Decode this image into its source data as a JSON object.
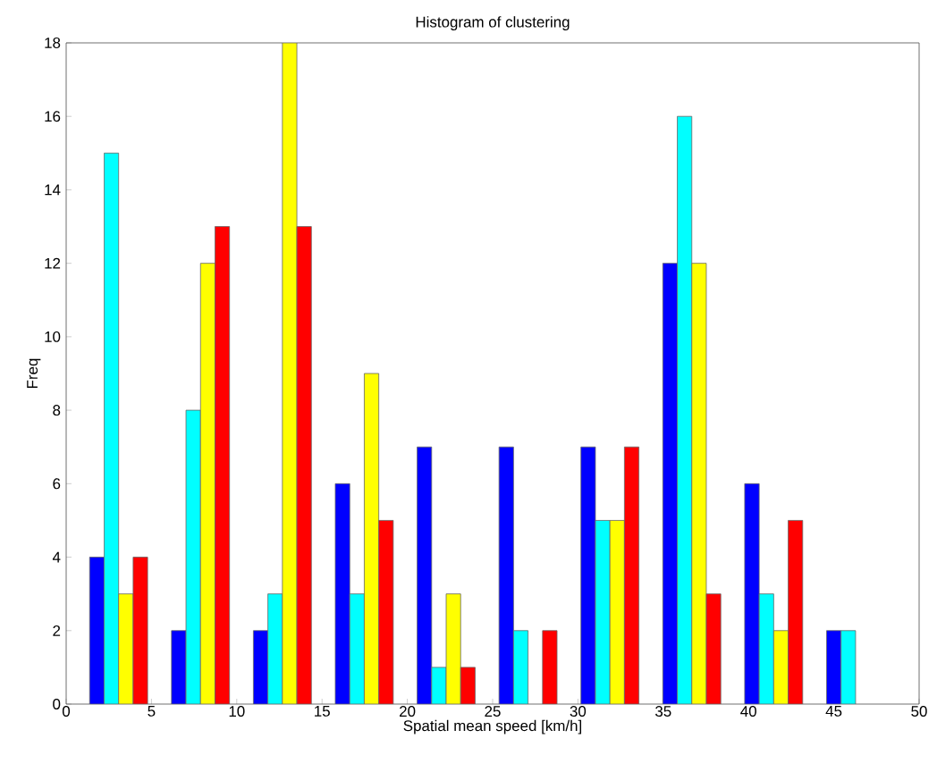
{
  "chart_data": {
    "type": "bar",
    "title": "Histogram of clustering",
    "xlabel": "Spatial mean speed [km/h]",
    "ylabel": "Freq",
    "xlim": [
      0,
      50
    ],
    "xticks": [
      0,
      5,
      10,
      15,
      20,
      25,
      30,
      35,
      40,
      45,
      50
    ],
    "ylim": [
      0,
      18
    ],
    "yticks": [
      0,
      2,
      4,
      6,
      8,
      10,
      12,
      14,
      16,
      18
    ],
    "grid": false,
    "series": [
      {
        "color": "#0000ff",
        "x": [
          1.8,
          6.6,
          11.4,
          16.2,
          21,
          25.8,
          30.6,
          35.4,
          40.2,
          45
        ],
        "values": [
          4,
          2,
          2,
          6,
          7,
          7,
          7,
          12,
          6,
          2
        ]
      },
      {
        "color": "#00ffff",
        "x": [
          2.65,
          7.45,
          12.25,
          17.05,
          21.85,
          26.65,
          31.45,
          36.25,
          41.05,
          45.85
        ],
        "values": [
          15,
          8,
          3,
          3,
          1,
          2,
          5,
          16,
          3,
          2
        ]
      },
      {
        "color": "#ffff00",
        "x": [
          3.5,
          8.3,
          13.1,
          17.9,
          22.7,
          27.5,
          32.3,
          37.1,
          41.9
        ],
        "values": [
          3,
          12,
          18,
          9,
          3,
          null,
          5,
          12,
          2
        ]
      },
      {
        "color": "#ff0000",
        "x": [
          4.35,
          9.15,
          13.95,
          18.75,
          23.55,
          28.35,
          33.15,
          37.95,
          42.75
        ],
        "values": [
          4,
          13,
          13,
          5,
          1,
          2,
          7,
          3,
          5
        ]
      }
    ]
  }
}
